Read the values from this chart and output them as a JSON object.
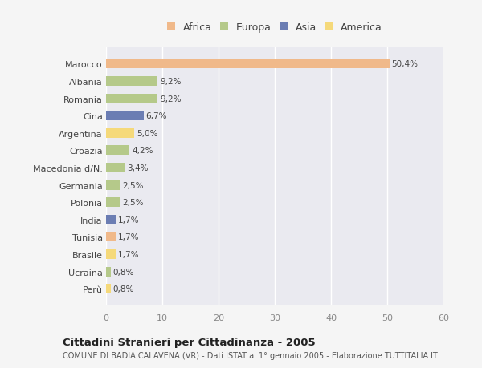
{
  "countries": [
    "Marocco",
    "Albania",
    "Romania",
    "Cina",
    "Argentina",
    "Croazia",
    "Macedonia d/N.",
    "Germania",
    "Polonia",
    "India",
    "Tunisia",
    "Brasile",
    "Ucraina",
    "Perù"
  ],
  "values": [
    50.4,
    9.2,
    9.2,
    6.7,
    5.0,
    4.2,
    3.4,
    2.5,
    2.5,
    1.7,
    1.7,
    1.7,
    0.8,
    0.8
  ],
  "labels": [
    "50,4%",
    "9,2%",
    "9,2%",
    "6,7%",
    "5,0%",
    "4,2%",
    "3,4%",
    "2,5%",
    "2,5%",
    "1,7%",
    "1,7%",
    "1,7%",
    "0,8%",
    "0,8%"
  ],
  "colors": [
    "#f0b98a",
    "#b5c98a",
    "#b5c98a",
    "#6b7db3",
    "#f5d97a",
    "#b5c98a",
    "#b5c98a",
    "#b5c98a",
    "#b5c98a",
    "#6b7db3",
    "#f0b98a",
    "#f5d97a",
    "#b5c98a",
    "#f5d97a"
  ],
  "legend_labels": [
    "Africa",
    "Europa",
    "Asia",
    "America"
  ],
  "legend_colors": [
    "#f0b98a",
    "#b5c98a",
    "#6b7db3",
    "#f5d97a"
  ],
  "title": "Cittadini Stranieri per Cittadinanza - 2005",
  "subtitle": "COMUNE DI BADIA CALAVENA (VR) - Dati ISTAT al 1° gennaio 2005 - Elaborazione TUTTITALIA.IT",
  "xlim": [
    0,
    60
  ],
  "xticks": [
    0,
    10,
    20,
    30,
    40,
    50,
    60
  ],
  "background_color": "#f5f5f5",
  "plot_bg_color": "#eaeaf0",
  "grid_color": "#ffffff"
}
